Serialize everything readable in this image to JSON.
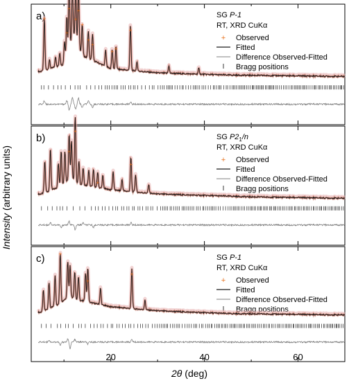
{
  "chart_data": {
    "type": "line",
    "xlabel": "2θ (deg)",
    "xlabel_symbol": "2θ",
    "xlabel_unit": " (deg)",
    "ylabel": "Intensity (arbitrary units)",
    "ylabel_italic": "Intensity",
    "ylabel_rest": " (arbitrary units)",
    "xlim": [
      3,
      70
    ],
    "xticks": [
      20,
      40,
      60
    ],
    "xtick_labels": [
      "20",
      "40",
      "60"
    ],
    "legend": [
      "Observed",
      "Fitted",
      "Difference Observed-Fitted",
      "Bragg positions"
    ],
    "colors": {
      "observed": "#e8731f",
      "fitted": "#1a1a1a",
      "difference": "#808080",
      "bragg": "#000000",
      "halo": "#e8b0b0"
    },
    "panels": [
      {
        "label": "a)",
        "space_group_prefix": "SG ",
        "space_group": "P-1",
        "space_group_sub": "",
        "space_group_suffix": "",
        "conditions": "RT, XRD CuKα",
        "baseline": [
          [
            5,
            0.12
          ],
          [
            10,
            0.22
          ],
          [
            12,
            0.62
          ],
          [
            14,
            0.34
          ],
          [
            20,
            0.16
          ],
          [
            30,
            0.1
          ],
          [
            45,
            0.07
          ],
          [
            70,
            0.05
          ]
        ],
        "peaks": [
          [
            5.8,
            0.72
          ],
          [
            6.9,
            0.12
          ],
          [
            8.2,
            0.14
          ],
          [
            9.1,
            0.18
          ],
          [
            10.1,
            0.3
          ],
          [
            10.6,
            0.55
          ],
          [
            11.1,
            0.9
          ],
          [
            11.8,
            0.68
          ],
          [
            12.5,
            0.74
          ],
          [
            13.1,
            0.85
          ],
          [
            13.9,
            0.42
          ],
          [
            15.2,
            0.38
          ],
          [
            16.1,
            0.36
          ],
          [
            18.9,
            0.22
          ],
          [
            20.3,
            0.27
          ],
          [
            21.1,
            0.31
          ],
          [
            24.2,
            0.62
          ],
          [
            25.6,
            0.12
          ],
          [
            32.4,
            0.1
          ],
          [
            38.8,
            0.08
          ]
        ],
        "observed_marks": [
          [
            5.8,
            0.86
          ],
          [
            10.6,
            0.66
          ],
          [
            11.1,
            1.0
          ],
          [
            12.5,
            0.85
          ],
          [
            13.1,
            0.97
          ],
          [
            13.9,
            0.78
          ],
          [
            15.2,
            0.56
          ],
          [
            16.1,
            0.5
          ],
          [
            20.3,
            0.4
          ],
          [
            21.1,
            0.44
          ],
          [
            24.2,
            0.7
          ]
        ],
        "difference_peaks": [
          [
            5.8,
            0.45
          ],
          [
            10.6,
            0.5
          ],
          [
            11.1,
            -0.8
          ],
          [
            11.8,
            0.9
          ],
          [
            12.5,
            -0.7
          ],
          [
            13.1,
            0.85
          ],
          [
            13.9,
            -0.5
          ],
          [
            15.2,
            0.4
          ],
          [
            16.1,
            -0.4
          ],
          [
            24.2,
            0.3
          ]
        ]
      },
      {
        "label": "b)",
        "space_group_prefix": "SG ",
        "space_group": "P2",
        "space_group_sub": "1",
        "space_group_suffix": "/n",
        "conditions": "RT, XRD CuKα",
        "baseline": [
          [
            5,
            0.1
          ],
          [
            9,
            0.2
          ],
          [
            11.5,
            0.33
          ],
          [
            13,
            0.24
          ],
          [
            20,
            0.16
          ],
          [
            30,
            0.1
          ],
          [
            50,
            0.06
          ],
          [
            70,
            0.04
          ]
        ],
        "peaks": [
          [
            5.9,
            0.44
          ],
          [
            7.1,
            0.59
          ],
          [
            8.8,
            0.34
          ],
          [
            9.4,
            0.49
          ],
          [
            10.2,
            0.44
          ],
          [
            11.1,
            0.64
          ],
          [
            11.6,
            0.52
          ],
          [
            12.4,
            0.92
          ],
          [
            13.2,
            0.32
          ],
          [
            14.1,
            0.24
          ],
          [
            15.3,
            0.22
          ],
          [
            16.3,
            0.24
          ],
          [
            17.2,
            0.22
          ],
          [
            18.3,
            0.18
          ],
          [
            20.5,
            0.26
          ],
          [
            22.4,
            0.16
          ],
          [
            24.3,
            0.48
          ],
          [
            25.3,
            0.24
          ],
          [
            28.1,
            0.12
          ]
        ],
        "observed_marks": [
          [
            12.4,
            0.99
          ],
          [
            11.1,
            0.7
          ],
          [
            24.3,
            0.52
          ],
          [
            17.2,
            0.26
          ]
        ],
        "difference_peaks": [
          [
            7.1,
            0.35
          ],
          [
            9.4,
            -0.4
          ],
          [
            11.1,
            0.5
          ],
          [
            12.4,
            -0.7
          ],
          [
            14.1,
            0.3
          ],
          [
            16.3,
            -0.3
          ],
          [
            24.3,
            0.3
          ]
        ]
      },
      {
        "label": "c)",
        "space_group_prefix": "SG ",
        "space_group": "P-1",
        "space_group_sub": "",
        "space_group_suffix": "",
        "conditions": "RT, XRD CuKα",
        "baseline": [
          [
            5,
            0.1
          ],
          [
            9,
            0.22
          ],
          [
            11,
            0.34
          ],
          [
            13,
            0.28
          ],
          [
            20,
            0.18
          ],
          [
            30,
            0.12
          ],
          [
            45,
            0.08
          ],
          [
            70,
            0.06
          ]
        ],
        "peaks": [
          [
            5.6,
            0.3
          ],
          [
            6.8,
            0.38
          ],
          [
            8.1,
            0.44
          ],
          [
            9.2,
            0.74
          ],
          [
            10.8,
            0.52
          ],
          [
            11.3,
            0.46
          ],
          [
            12.3,
            0.4
          ],
          [
            13.1,
            0.34
          ],
          [
            14.6,
            0.42
          ],
          [
            15.1,
            0.5
          ],
          [
            17.8,
            0.24
          ],
          [
            24.5,
            0.58
          ],
          [
            27.3,
            0.14
          ]
        ],
        "observed_marks": [
          [
            9.2,
            0.96
          ],
          [
            24.5,
            0.66
          ],
          [
            15.1,
            0.56
          ]
        ],
        "difference_peaks": [
          [
            6.8,
            0.3
          ],
          [
            9.2,
            -0.5
          ],
          [
            10.8,
            0.4
          ],
          [
            11.3,
            -0.9
          ],
          [
            12.3,
            0.35
          ],
          [
            15.1,
            -0.3
          ],
          [
            24.5,
            0.35
          ]
        ]
      }
    ]
  }
}
